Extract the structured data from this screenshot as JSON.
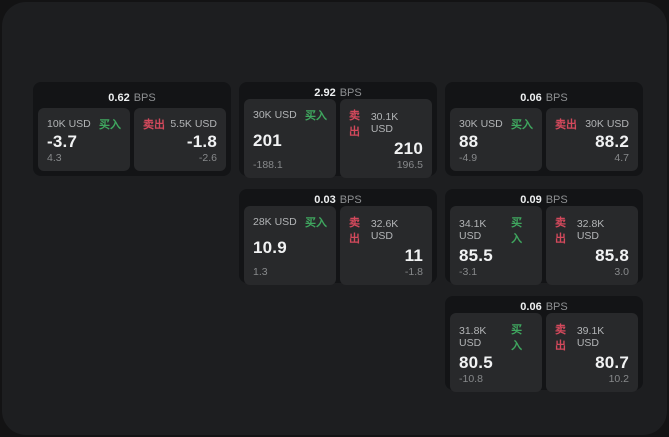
{
  "labels": {
    "bps_unit": "BPS",
    "buy": "买入",
    "sell": "卖出"
  },
  "colors": {
    "background": "#131314",
    "surface": "#1d1e20",
    "card": "#131416",
    "panel": "#28292b",
    "buy_accent": "#3fa75f",
    "sell_accent": "#d4495c",
    "primary_text": "#f1f2f3",
    "muted_text": "#87898b"
  },
  "cards": [
    {
      "bps": "0.62",
      "buy": {
        "amount": "10K USD",
        "price": "-3.7",
        "delta": "4.3"
      },
      "sell": {
        "amount": "5.5K USD",
        "price": "-1.8",
        "delta": "-2.6"
      }
    },
    {
      "bps": "2.92",
      "buy": {
        "amount": "30K USD",
        "price": "201",
        "delta": "-188.1"
      },
      "sell": {
        "amount": "30.1K USD",
        "price": "210",
        "delta": "196.5"
      }
    },
    {
      "bps": "0.06",
      "buy": {
        "amount": "30K USD",
        "price": "88",
        "delta": "-4.9"
      },
      "sell": {
        "amount": "30K USD",
        "price": "88.2",
        "delta": "4.7"
      }
    },
    {
      "bps": "0.03",
      "buy": {
        "amount": "28K USD",
        "price": "10.9",
        "delta": "1.3"
      },
      "sell": {
        "amount": "32.6K USD",
        "price": "11",
        "delta": "-1.8"
      }
    },
    {
      "bps": "0.09",
      "buy": {
        "amount": "34.1K USD",
        "price": "85.5",
        "delta": "-3.1"
      },
      "sell": {
        "amount": "32.8K USD",
        "price": "85.8",
        "delta": "3.0"
      }
    },
    {
      "bps": "0.06",
      "buy": {
        "amount": "31.8K USD",
        "price": "80.5",
        "delta": "-10.8"
      },
      "sell": {
        "amount": "39.1K USD",
        "price": "80.7",
        "delta": "10.2"
      }
    }
  ]
}
